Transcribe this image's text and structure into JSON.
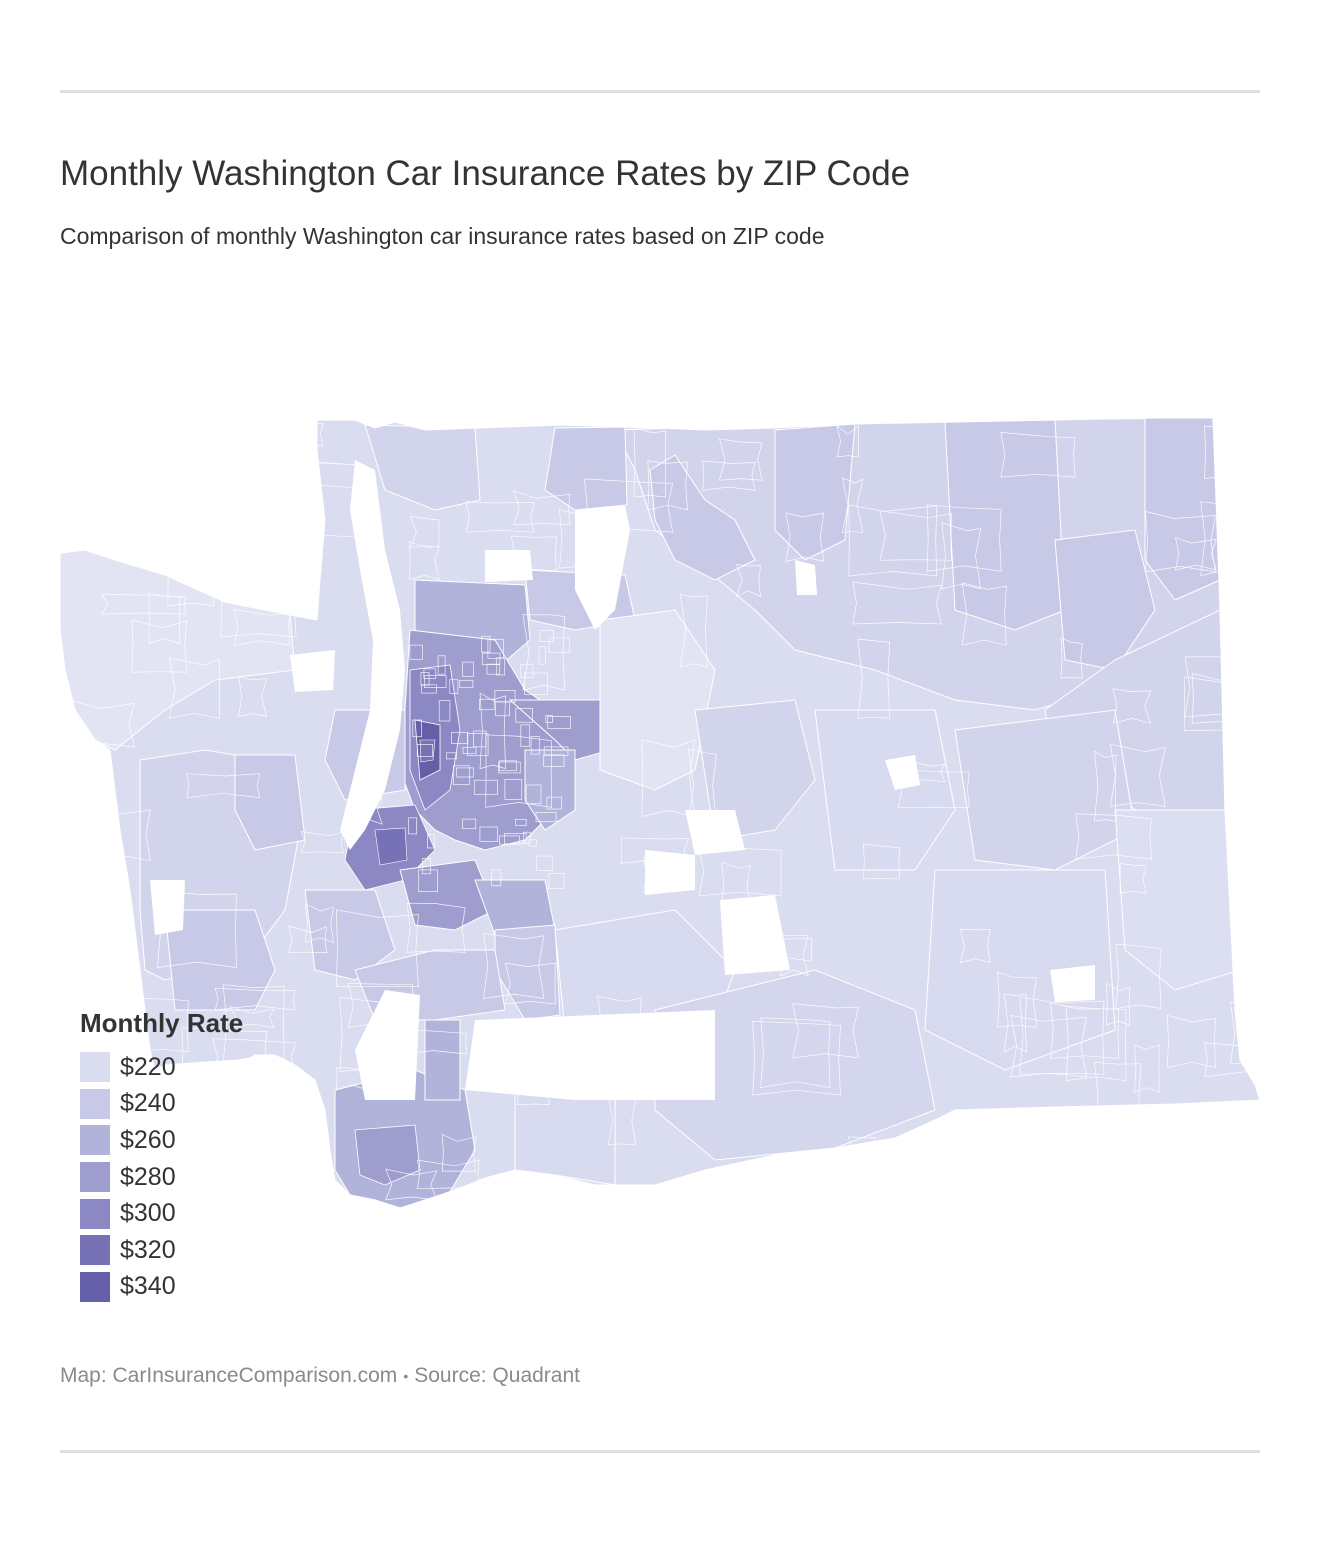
{
  "header": {
    "title": "Monthly Washington Car Insurance Rates by ZIP Code",
    "subtitle": "Comparison of monthly Washington car insurance rates based on ZIP code"
  },
  "legend": {
    "title": "Monthly Rate",
    "items": [
      {
        "label": "$220",
        "color": "#dadcf0"
      },
      {
        "label": "$240",
        "color": "#c7c9e6"
      },
      {
        "label": "$260",
        "color": "#b2b3da"
      },
      {
        "label": "$280",
        "color": "#9e9dce"
      },
      {
        "label": "$300",
        "color": "#8b88c3"
      },
      {
        "label": "$320",
        "color": "#7771b5"
      },
      {
        "label": "$340",
        "color": "#655ea9"
      }
    ]
  },
  "footer": {
    "map_credit": "Map: CarInsuranceComparison.com",
    "separator": "•",
    "source": "Source: Quadrant"
  },
  "map": {
    "region": "Washington",
    "unit": "ZIP code",
    "color_scale": [
      "#dadcf0",
      "#c7c9e6",
      "#b2b3da",
      "#9e9dce",
      "#8b88c3",
      "#7771b5",
      "#655ea9"
    ]
  }
}
